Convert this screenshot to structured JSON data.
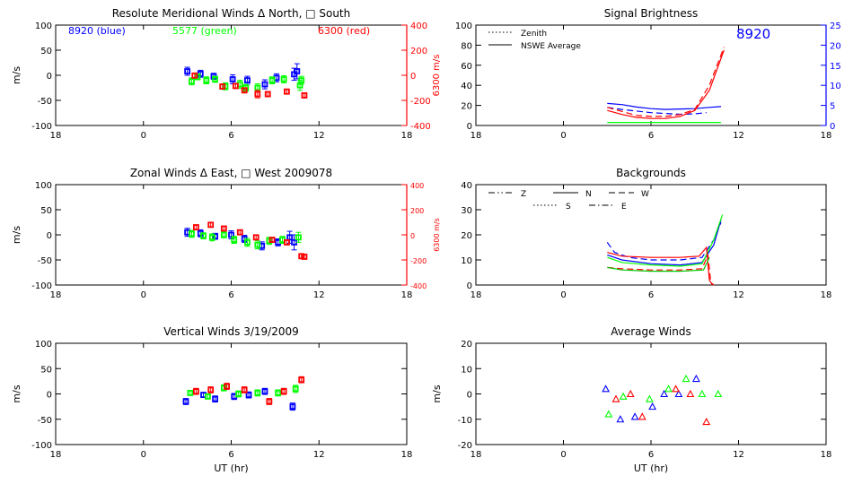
{
  "colors": {
    "blue": "#0000ff",
    "green": "#00ff00",
    "red": "#ff0000",
    "dgreen": "#00c800",
    "axis": "#000000"
  },
  "chart_data": [
    {
      "type": "scatter",
      "title": "Resolute Meridional Winds Δ North, □ South",
      "ylabel": "m/s",
      "y2label": "6300 m/s",
      "xlabel": "",
      "xticks": [
        "18",
        "0",
        "6",
        "12",
        "18"
      ],
      "yticks": [
        "100",
        "50",
        "0",
        "-50",
        "-100"
      ],
      "y2ticks": [
        "400",
        "200",
        "0",
        "-200",
        "-400"
      ],
      "ylim": [
        -100,
        100
      ],
      "y2lim": [
        -400,
        400
      ],
      "legend": {
        "blue": "8920 (blue)",
        "green": "5577 (green)",
        "red": "6300 (red)"
      },
      "series": [
        {
          "color": "blue",
          "axis": "left",
          "points": [
            [
              3.0,
              8,
              8
            ],
            [
              3.9,
              3,
              7
            ],
            [
              4.8,
              -2,
              6
            ],
            [
              6.1,
              -8,
              9
            ],
            [
              7.1,
              -10,
              8
            ],
            [
              8.3,
              -18,
              9
            ],
            [
              9.1,
              -5,
              8
            ],
            [
              10.3,
              2,
              12
            ],
            [
              10.5,
              8,
              15
            ]
          ]
        },
        {
          "color": "green",
          "axis": "left",
          "points": [
            [
              3.3,
              -12,
              7
            ],
            [
              3.7,
              -3,
              6
            ],
            [
              4.3,
              -10,
              7
            ],
            [
              4.9,
              -8,
              6
            ],
            [
              5.6,
              -22,
              7
            ],
            [
              6.6,
              -18,
              8
            ],
            [
              7.0,
              -25,
              7
            ],
            [
              7.8,
              -25,
              8
            ],
            [
              8.8,
              -10,
              7
            ],
            [
              9.6,
              -8,
              7
            ],
            [
              10.7,
              -20,
              10
            ],
            [
              10.8,
              -10,
              8
            ]
          ]
        },
        {
          "color": "red",
          "axis": "right",
          "points": [
            [
              3.5,
              -2,
              20
            ],
            [
              5.4,
              -90,
              20
            ],
            [
              6.3,
              -85,
              20
            ],
            [
              6.9,
              -120,
              20
            ],
            [
              7.8,
              -150,
              30
            ],
            [
              8.5,
              -150,
              20
            ],
            [
              9.8,
              -130,
              20
            ],
            [
              11.0,
              -160,
              20
            ]
          ]
        }
      ]
    },
    {
      "type": "line",
      "title": "Signal Brightness",
      "ylabel": "",
      "y2label": "",
      "xlabel": "",
      "xticks": [
        "18",
        "0",
        "6",
        "12",
        "18"
      ],
      "yticks": [
        "100",
        "80",
        "60",
        "40",
        "20",
        "0"
      ],
      "y2ticks": [
        "25",
        "20",
        "15",
        "10",
        "5",
        "0"
      ],
      "ylim": [
        0,
        100
      ],
      "y2lim": [
        0,
        25
      ],
      "annotation": "8920",
      "legend": [
        {
          "label": "Zenith",
          "dash": "dotted"
        },
        {
          "label": "NSWE Average",
          "dash": "solid"
        }
      ],
      "series": [
        {
          "color": "blue",
          "axis": "right",
          "dash": "solid",
          "points": [
            [
              3,
              5.5
            ],
            [
              4,
              5.2
            ],
            [
              5,
              4.6
            ],
            [
              6,
              4.2
            ],
            [
              7,
              4.0
            ],
            [
              8,
              4.1
            ],
            [
              9,
              4.2
            ],
            [
              10,
              4.5
            ],
            [
              10.8,
              4.7
            ]
          ]
        },
        {
          "color": "blue",
          "axis": "right",
          "dash": "dashed",
          "points": [
            [
              3,
              4.5
            ],
            [
              4,
              4.0
            ],
            [
              5,
              3.6
            ],
            [
              6,
              3.2
            ],
            [
              7,
              3.0
            ],
            [
              8,
              2.8
            ],
            [
              9,
              2.9
            ],
            [
              9.8,
              3.2
            ]
          ]
        },
        {
          "color": "red",
          "axis": "left",
          "dash": "solid",
          "points": [
            [
              3,
              15
            ],
            [
              4,
              11
            ],
            [
              5,
              8
            ],
            [
              6,
              7
            ],
            [
              7,
              7
            ],
            [
              8,
              9
            ],
            [
              9,
              15
            ],
            [
              10,
              35
            ],
            [
              11,
              75
            ]
          ]
        },
        {
          "color": "red",
          "axis": "left",
          "dash": "dashed",
          "points": [
            [
              3,
              18
            ],
            [
              4,
              14
            ],
            [
              5,
              10
            ],
            [
              6,
              9
            ],
            [
              7,
              9
            ],
            [
              8,
              11
            ],
            [
              9,
              16
            ],
            [
              10,
              40
            ],
            [
              11,
              78
            ]
          ]
        },
        {
          "color": "green",
          "axis": "left",
          "dash": "solid",
          "points": [
            [
              3,
              3
            ],
            [
              5,
              3
            ],
            [
              7,
              3
            ],
            [
              9,
              3
            ],
            [
              10.8,
              3
            ]
          ]
        }
      ]
    },
    {
      "type": "scatter",
      "title": "Zonal Winds Δ East, □ West 2009078",
      "ylabel": "m/s",
      "y2label": "6300 m/s",
      "xlabel": "",
      "xticks": [
        "18",
        "0",
        "6",
        "12",
        "18"
      ],
      "yticks": [
        "100",
        "50",
        "0",
        "-50",
        "-100"
      ],
      "y2ticks": [
        "400",
        "200",
        "0",
        "-200",
        "-400"
      ],
      "ylim": [
        -100,
        100
      ],
      "y2lim": [
        -400,
        400
      ],
      "series": [
        {
          "color": "blue",
          "axis": "left",
          "points": [
            [
              3.0,
              5,
              8
            ],
            [
              3.9,
              3,
              7
            ],
            [
              4.9,
              -3,
              6
            ],
            [
              6.0,
              0,
              8
            ],
            [
              6.9,
              -8,
              7
            ],
            [
              8.1,
              -22,
              8
            ],
            [
              9.2,
              -15,
              7
            ],
            [
              10.0,
              -5,
              12
            ],
            [
              10.3,
              -15,
              15
            ]
          ]
        },
        {
          "color": "green",
          "axis": "left",
          "points": [
            [
              3.3,
              2,
              7
            ],
            [
              4.1,
              -2,
              6
            ],
            [
              4.7,
              -5,
              7
            ],
            [
              5.5,
              0,
              6
            ],
            [
              6.2,
              -10,
              7
            ],
            [
              7.1,
              -15,
              8
            ],
            [
              7.8,
              -20,
              8
            ],
            [
              8.6,
              -12,
              7
            ],
            [
              9.5,
              -10,
              7
            ],
            [
              10.6,
              -5,
              10
            ]
          ]
        },
        {
          "color": "red",
          "axis": "right",
          "points": [
            [
              3.6,
              60,
              20
            ],
            [
              4.6,
              80,
              20
            ],
            [
              5.5,
              50,
              20
            ],
            [
              6.6,
              20,
              20
            ],
            [
              7.7,
              -20,
              20
            ],
            [
              8.8,
              -40,
              20
            ],
            [
              9.8,
              -60,
              20
            ],
            [
              10.8,
              -170,
              20
            ],
            [
              11.0,
              -175,
              15
            ]
          ]
        }
      ]
    },
    {
      "type": "line",
      "title": "Backgrounds",
      "ylabel": "",
      "xlabel": "",
      "xticks": [
        "18",
        "0",
        "6",
        "12",
        "18"
      ],
      "yticks": [
        "40",
        "30",
        "20",
        "10",
        "0"
      ],
      "ylim": [
        0,
        40
      ],
      "legend": [
        {
          "label": "Z",
          "dash": "dashdotdot"
        },
        {
          "label": "N",
          "dash": "solid"
        },
        {
          "label": "W",
          "dash": "dashed"
        },
        {
          "label": "S",
          "dash": "dotted"
        },
        {
          "label": "E",
          "dash": "dashdot"
        }
      ],
      "series": [
        {
          "color": "blue",
          "dash": "dashed",
          "points": [
            [
              3,
              17
            ],
            [
              3.5,
              13
            ],
            [
              4.5,
              11
            ],
            [
              6,
              10
            ],
            [
              8,
              10
            ],
            [
              9.5,
              11
            ],
            [
              10.3,
              18
            ],
            [
              10.8,
              25
            ]
          ]
        },
        {
          "color": "blue",
          "dash": "solid",
          "points": [
            [
              3,
              12
            ],
            [
              4,
              10
            ],
            [
              6,
              8.5
            ],
            [
              8,
              8
            ],
            [
              9.5,
              9
            ],
            [
              10.3,
              16
            ],
            [
              10.8,
              26
            ]
          ]
        },
        {
          "color": "green",
          "dash": "solid",
          "points": [
            [
              3,
              11
            ],
            [
              4,
              9
            ],
            [
              6,
              8
            ],
            [
              8,
              7.5
            ],
            [
              9.5,
              8.5
            ],
            [
              10.3,
              18
            ],
            [
              10.9,
              28
            ]
          ]
        },
        {
          "color": "red",
          "dash": "solid",
          "points": [
            [
              3,
              13
            ],
            [
              4,
              11.5
            ],
            [
              6,
              11
            ],
            [
              8,
              11
            ],
            [
              9.3,
              11.5
            ],
            [
              9.8,
              15
            ],
            [
              10.0,
              2
            ],
            [
              10.2,
              0
            ]
          ]
        },
        {
          "color": "red",
          "dash": "dashed",
          "points": [
            [
              3,
              7
            ],
            [
              4,
              6.5
            ],
            [
              6,
              6
            ],
            [
              8,
              6
            ],
            [
              9.5,
              6.5
            ],
            [
              9.9,
              12
            ],
            [
              10.1,
              1
            ],
            [
              10.3,
              0
            ]
          ]
        },
        {
          "color": "dgreen",
          "dash": "solid",
          "points": [
            [
              3,
              7
            ],
            [
              4,
              6
            ],
            [
              6,
              5.5
            ],
            [
              8,
              5.5
            ],
            [
              9.6,
              6
            ],
            [
              10.0,
              11
            ]
          ]
        }
      ]
    },
    {
      "type": "scatter",
      "title": "Vertical Winds 3/19/2009",
      "ylabel": "m/s",
      "xlabel": "UT (hr)",
      "xticks": [
        "18",
        "0",
        "6",
        "12",
        "18"
      ],
      "yticks": [
        "100",
        "50",
        "0",
        "-50",
        "-100"
      ],
      "ylim": [
        -100,
        100
      ],
      "series": [
        {
          "color": "blue",
          "axis": "left",
          "points": [
            [
              2.9,
              -15,
              6
            ],
            [
              4.1,
              -2,
              5
            ],
            [
              4.9,
              -10,
              6
            ],
            [
              6.2,
              -5,
              6
            ],
            [
              7.2,
              -2,
              6
            ],
            [
              8.3,
              5,
              6
            ],
            [
              10.2,
              -25,
              7
            ]
          ]
        },
        {
          "color": "green",
          "axis": "left",
          "points": [
            [
              3.2,
              2,
              5
            ],
            [
              4.4,
              -5,
              5
            ],
            [
              5.5,
              12,
              6
            ],
            [
              6.5,
              0,
              6
            ],
            [
              7.8,
              2,
              6
            ],
            [
              9.2,
              2,
              6
            ],
            [
              10.4,
              10,
              7
            ]
          ]
        },
        {
          "color": "red",
          "axis": "left",
          "points": [
            [
              3.6,
              5,
              6
            ],
            [
              4.6,
              8,
              6
            ],
            [
              5.7,
              15,
              6
            ],
            [
              6.9,
              8,
              6
            ],
            [
              8.6,
              -15,
              6
            ],
            [
              9.6,
              5,
              6
            ],
            [
              10.8,
              28,
              6
            ]
          ]
        }
      ]
    },
    {
      "type": "scatter",
      "title": "Average Winds",
      "ylabel": "m/s",
      "xlabel": "UT (hr)",
      "xticks": [
        "18",
        "0",
        "6",
        "12",
        "18"
      ],
      "yticks": [
        "20",
        "10",
        "0",
        "-10",
        "-20"
      ],
      "ylim": [
        -20,
        20
      ],
      "marker": "triangle",
      "series": [
        {
          "color": "blue",
          "axis": "left",
          "points": [
            [
              2.9,
              2
            ],
            [
              3.9,
              -10
            ],
            [
              4.9,
              -9
            ],
            [
              6.1,
              -5
            ],
            [
              6.9,
              0
            ],
            [
              7.9,
              0
            ],
            [
              9.1,
              6
            ]
          ]
        },
        {
          "color": "green",
          "axis": "left",
          "points": [
            [
              3.1,
              -8
            ],
            [
              4.1,
              -1
            ],
            [
              5.9,
              -2
            ],
            [
              7.2,
              2
            ],
            [
              8.4,
              6
            ],
            [
              9.5,
              0
            ],
            [
              10.6,
              0
            ]
          ]
        },
        {
          "color": "red",
          "axis": "left",
          "points": [
            [
              3.6,
              -2
            ],
            [
              4.6,
              0
            ],
            [
              5.4,
              -9
            ],
            [
              7.7,
              2
            ],
            [
              8.7,
              0
            ],
            [
              9.8,
              -11
            ]
          ]
        }
      ]
    }
  ]
}
